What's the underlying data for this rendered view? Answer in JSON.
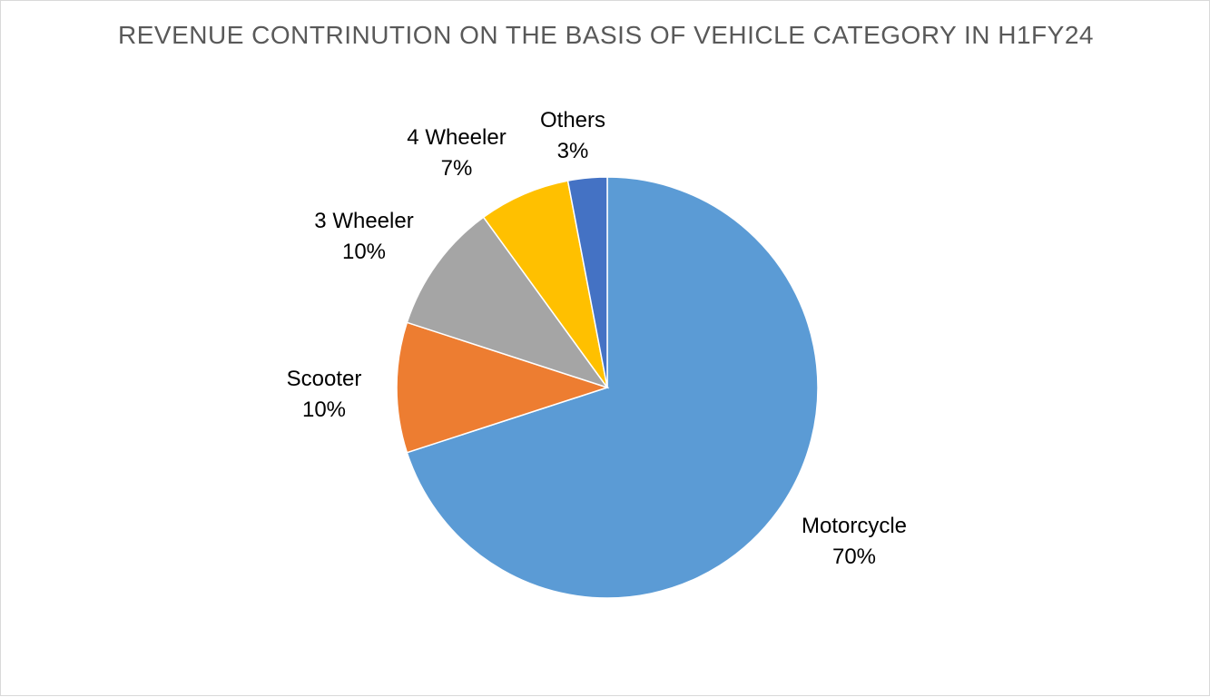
{
  "chart_data": {
    "type": "pie",
    "title": "REVENUE CONTRINUTION ON THE BASIS OF VEHICLE CATEGORY IN H1FY24",
    "categories": [
      "Motorcycle",
      "Scooter",
      "3 Wheeler",
      "4 Wheeler",
      "Others"
    ],
    "values": [
      70,
      10,
      10,
      7,
      3
    ],
    "value_labels": [
      "70%",
      "10%",
      "10%",
      "7%",
      "3%"
    ],
    "colors": [
      "#5B9BD5",
      "#ED7D31",
      "#A5A5A5",
      "#FFC000",
      "#4472C4"
    ],
    "start_angle": "12 o'clock",
    "direction": "clockwise",
    "legend": "none",
    "data_labels": "outside"
  }
}
